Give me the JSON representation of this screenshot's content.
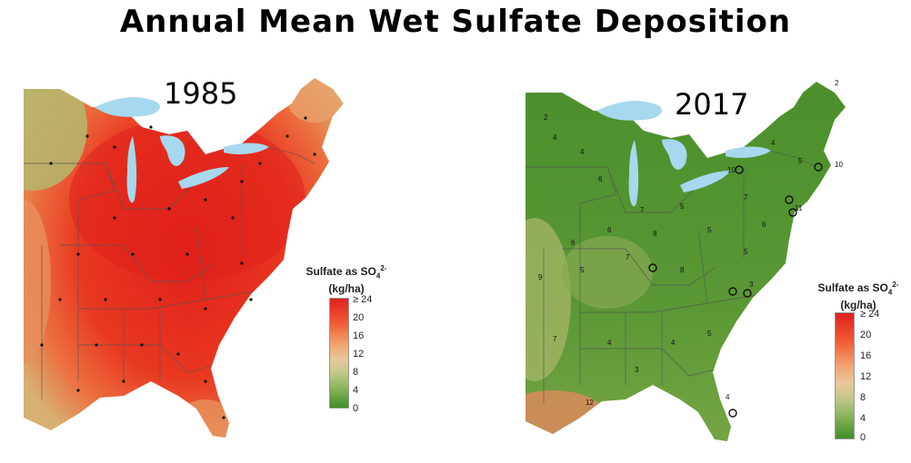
{
  "title": "Annual Mean Wet Sulfate Deposition",
  "maps": [
    {
      "year": "1985"
    },
    {
      "year": "2017"
    }
  ],
  "legend": {
    "title_line1": "Sulfate as SO",
    "title_sub": "4",
    "title_sup": "2-",
    "title_line2": "(kg/ha)",
    "ticks": [
      "≥ 24",
      "20",
      "16",
      "12",
      "8",
      "4",
      "0"
    ]
  },
  "colors": {
    "lake": "#a6d8ee",
    "high": "#e0201c",
    "low": "#3f8d23"
  },
  "site_labels_2017": [
    "2",
    "4",
    "4",
    "6",
    "7",
    "5",
    "5",
    "8",
    "6",
    "6",
    "9",
    "5",
    "7",
    "8",
    "5",
    "6",
    "11",
    "7",
    "10",
    "4",
    "5",
    "12",
    "7",
    "4",
    "3",
    "10",
    "4",
    "5",
    "3",
    "4",
    "2"
  ]
}
